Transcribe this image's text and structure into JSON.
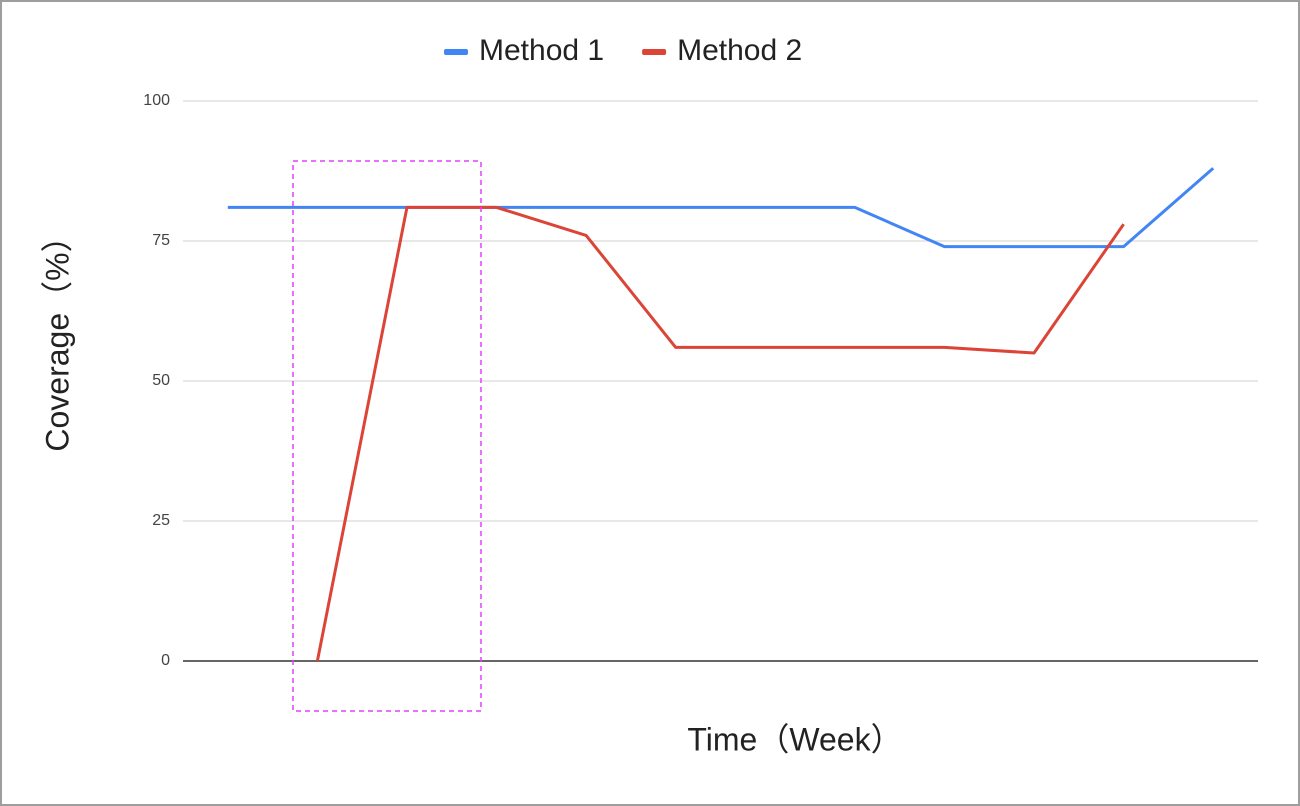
{
  "chart_data": {
    "type": "line",
    "categories": [
      null,
      null,
      null,
      null,
      null,
      null,
      null,
      null,
      null,
      null,
      null,
      null
    ],
    "series": [
      {
        "name": "Method 1",
        "color": "#4285f4",
        "values": [
          81,
          81,
          81,
          81,
          81,
          81,
          81,
          81,
          74,
          74,
          74,
          88
        ]
      },
      {
        "name": "Method 2",
        "color": "#db4437",
        "values": [
          null,
          0,
          81,
          81,
          76,
          56,
          56,
          56,
          56,
          55,
          78,
          null
        ]
      }
    ],
    "xlabel": "Time（Week）",
    "ylabel": "Coverage（%）",
    "ylim": [
      0,
      100
    ],
    "yticks": [
      0,
      25,
      50,
      75,
      100
    ],
    "grid": true,
    "legend": "top"
  }
}
